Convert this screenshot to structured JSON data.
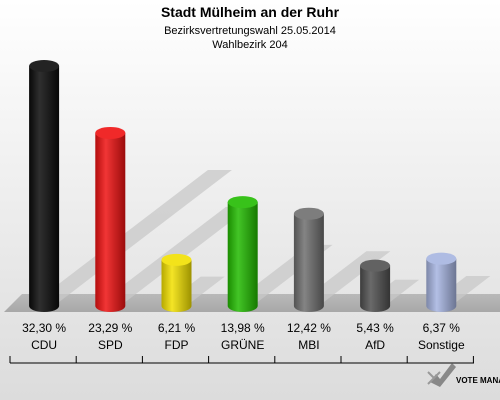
{
  "chart_data": {
    "type": "bar",
    "title": "Stadt Mülheim an der Ruhr",
    "subtitle_lines": [
      "Bezirksvertretungswahl 25.05.2014",
      "Wahlbezirk 204"
    ],
    "categories": [
      "CDU",
      "SPD",
      "FDP",
      "GRÜNE",
      "MBI",
      "AfD",
      "Sonstige"
    ],
    "values": [
      32.3,
      23.29,
      6.21,
      13.98,
      12.42,
      5.43,
      6.37
    ],
    "value_labels": [
      "32,30 %",
      "23,29 %",
      "6,21 %",
      "13,98 %",
      "12,42 %",
      "5,43 %",
      "6,37 %"
    ],
    "colors": [
      "#0a0a0a",
      "#ee1111",
      "#f2e000",
      "#22bb00",
      "#6e6e6e",
      "#505050",
      "#a6b4e0"
    ],
    "ylim": [
      0,
      32.3
    ],
    "grid": false,
    "legend": "none"
  },
  "logo": {
    "text": "VOTE MANAGER"
  }
}
